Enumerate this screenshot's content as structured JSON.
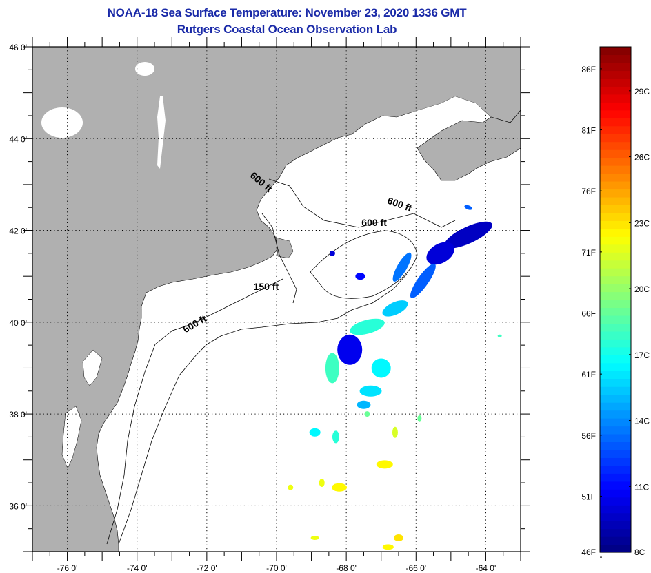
{
  "title": {
    "line1": "NOAA-18 Sea Surface Temperature:  November 23, 2020 1336 GMT",
    "line2": "Rutgers Coastal Ocean Observation Lab"
  },
  "map": {
    "lon_range": [
      -77,
      -63
    ],
    "lat_range": [
      35,
      46
    ],
    "lon_ticks": [
      {
        "value": -76,
        "label": "-76 0'"
      },
      {
        "value": -74,
        "label": "-74 0'"
      },
      {
        "value": -72,
        "label": "-72 0'"
      },
      {
        "value": -70,
        "label": "-70 0'"
      },
      {
        "value": -68,
        "label": "-68 0'"
      },
      {
        "value": -66,
        "label": "-66 0'"
      },
      {
        "value": -64,
        "label": "-64 0'"
      }
    ],
    "lat_ticks": [
      {
        "value": 46,
        "label": "46 0'"
      },
      {
        "value": 44,
        "label": "44 0'"
      },
      {
        "value": 42,
        "label": "42 0'"
      },
      {
        "value": 40,
        "label": "40 0'"
      },
      {
        "value": 38,
        "label": "38 0'"
      },
      {
        "value": 36,
        "label": "36 0'"
      }
    ],
    "contour_labels": [
      {
        "text": "600 ft",
        "lon": -70.5,
        "lat": 43.0,
        "angle": 40
      },
      {
        "text": "600 ft",
        "lon": -66.5,
        "lat": 42.5,
        "angle": 20
      },
      {
        "text": "600 ft",
        "lon": -67.2,
        "lat": 42.1,
        "angle": 0
      },
      {
        "text": "150 ft",
        "lon": -70.3,
        "lat": 40.7,
        "angle": 0
      },
      {
        "text": "600 ft",
        "lon": -72.3,
        "lat": 39.9,
        "angle": -30
      }
    ],
    "colors": {
      "land": "#b0b0b0",
      "water": "#ffffff",
      "frame": "#000000"
    }
  },
  "colorbar": {
    "min_c": 8,
    "max_c": 31,
    "f_labels": [
      "86F",
      "81F",
      "76F",
      "71F",
      "66F",
      "61F",
      "56F",
      "51F",
      "46F"
    ],
    "f_values": [
      86,
      81,
      76,
      71,
      66,
      61,
      56,
      51,
      46
    ],
    "c_labels": [
      "29C",
      "26C",
      "23C",
      "20C",
      "17C",
      "14C",
      "11C",
      "8C"
    ],
    "c_values": [
      29,
      26,
      23,
      20,
      17,
      14,
      11,
      8
    ]
  },
  "sst_patches": [
    {
      "lon": -64.5,
      "lat": 41.9,
      "rx": 38,
      "ry": 12,
      "temp_c": 9.5,
      "rot": -25
    },
    {
      "lon": -65.3,
      "lat": 41.5,
      "rx": 22,
      "ry": 14,
      "temp_c": 10,
      "rot": -30
    },
    {
      "lon": -65.8,
      "lat": 40.9,
      "rx": 8,
      "ry": 30,
      "temp_c": 13,
      "rot": 35
    },
    {
      "lon": -66.4,
      "lat": 41.2,
      "rx": 7,
      "ry": 24,
      "temp_c": 13.5,
      "rot": 30
    },
    {
      "lon": -66.6,
      "lat": 40.3,
      "rx": 20,
      "ry": 9,
      "temp_c": 15.5,
      "rot": -25
    },
    {
      "lon": -67.4,
      "lat": 39.9,
      "rx": 26,
      "ry": 10,
      "temp_c": 17.5,
      "rot": -15
    },
    {
      "lon": -67.9,
      "lat": 39.4,
      "rx": 18,
      "ry": 22,
      "temp_c": 10.5,
      "rot": 0
    },
    {
      "lon": -68.4,
      "lat": 39.0,
      "rx": 10,
      "ry": 22,
      "temp_c": 18,
      "rot": 0
    },
    {
      "lon": -67.0,
      "lat": 39.0,
      "rx": 14,
      "ry": 14,
      "temp_c": 16.5,
      "rot": 0
    },
    {
      "lon": -67.3,
      "lat": 38.5,
      "rx": 16,
      "ry": 8,
      "temp_c": 16,
      "rot": 0
    },
    {
      "lon": -67.5,
      "lat": 38.2,
      "rx": 10,
      "ry": 6,
      "temp_c": 15,
      "rot": 0
    },
    {
      "lon": -68.9,
      "lat": 37.6,
      "rx": 8,
      "ry": 6,
      "temp_c": 16.5,
      "rot": 0
    },
    {
      "lon": -68.3,
      "lat": 37.5,
      "rx": 5,
      "ry": 9,
      "temp_c": 17.5,
      "rot": 0
    },
    {
      "lon": -67.6,
      "lat": 41.0,
      "rx": 7,
      "ry": 5,
      "temp_c": 11,
      "rot": 0
    },
    {
      "lon": -68.4,
      "lat": 41.5,
      "rx": 4,
      "ry": 4,
      "temp_c": 10,
      "rot": 0
    },
    {
      "lon": -66.9,
      "lat": 36.9,
      "rx": 12,
      "ry": 6,
      "temp_c": 22.5,
      "rot": 0
    },
    {
      "lon": -66.6,
      "lat": 37.6,
      "rx": 4,
      "ry": 8,
      "temp_c": 21.5,
      "rot": 0
    },
    {
      "lon": -68.2,
      "lat": 36.4,
      "rx": 11,
      "ry": 6,
      "temp_c": 22.5,
      "rot": 0
    },
    {
      "lon": -68.7,
      "lat": 36.5,
      "rx": 4,
      "ry": 6,
      "temp_c": 22,
      "rot": 0
    },
    {
      "lon": -69.6,
      "lat": 36.4,
      "rx": 4,
      "ry": 4,
      "temp_c": 22,
      "rot": 0
    },
    {
      "lon": -66.5,
      "lat": 35.3,
      "rx": 7,
      "ry": 5,
      "temp_c": 23,
      "rot": 0
    },
    {
      "lon": -66.8,
      "lat": 35.1,
      "rx": 8,
      "ry": 4,
      "temp_c": 22.5,
      "rot": 0
    },
    {
      "lon": -68.9,
      "lat": 35.3,
      "rx": 6,
      "ry": 3,
      "temp_c": 22,
      "rot": 0
    },
    {
      "lon": -65.9,
      "lat": 37.9,
      "rx": 3,
      "ry": 5,
      "temp_c": 19,
      "rot": 0
    },
    {
      "lon": -67.4,
      "lat": 38.0,
      "rx": 4,
      "ry": 4,
      "temp_c": 19,
      "rot": 0
    },
    {
      "lon": -63.6,
      "lat": 39.7,
      "rx": 3,
      "ry": 2,
      "temp_c": 18,
      "rot": 0
    },
    {
      "lon": -64.5,
      "lat": 42.5,
      "rx": 6,
      "ry": 3,
      "temp_c": 13,
      "rot": 20
    }
  ]
}
